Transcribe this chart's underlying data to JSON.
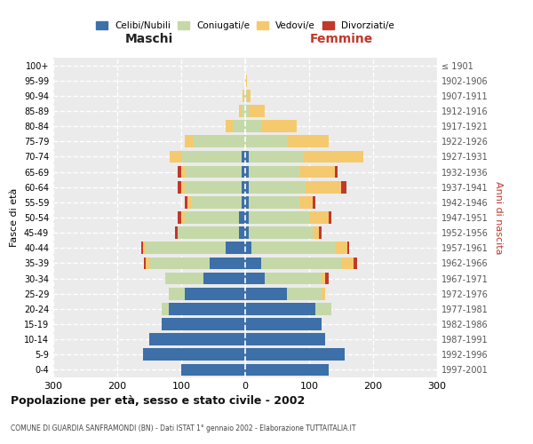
{
  "age_groups": [
    "0-4",
    "5-9",
    "10-14",
    "15-19",
    "20-24",
    "25-29",
    "30-34",
    "35-39",
    "40-44",
    "45-49",
    "50-54",
    "55-59",
    "60-64",
    "65-69",
    "70-74",
    "75-79",
    "80-84",
    "85-89",
    "90-94",
    "95-99",
    "100+"
  ],
  "anni_nascita": [
    "1997-2001",
    "1992-1996",
    "1987-1991",
    "1982-1986",
    "1977-1981",
    "1972-1976",
    "1967-1971",
    "1962-1966",
    "1957-1961",
    "1952-1956",
    "1947-1951",
    "1942-1946",
    "1937-1941",
    "1932-1936",
    "1927-1931",
    "1922-1926",
    "1917-1921",
    "1912-1916",
    "1907-1911",
    "1902-1906",
    "≤ 1901"
  ],
  "maschi_celibi": [
    100,
    160,
    150,
    130,
    120,
    95,
    65,
    55,
    30,
    10,
    10,
    5,
    5,
    5,
    5,
    0,
    0,
    0,
    0,
    0,
    0
  ],
  "maschi_coniugati": [
    0,
    0,
    0,
    0,
    10,
    25,
    60,
    95,
    125,
    95,
    85,
    80,
    90,
    90,
    95,
    80,
    20,
    5,
    2,
    0,
    0
  ],
  "maschi_vedovi": [
    0,
    0,
    0,
    0,
    0,
    0,
    0,
    5,
    5,
    0,
    5,
    5,
    5,
    5,
    18,
    15,
    10,
    5,
    2,
    0,
    0
  ],
  "maschi_divorziati": [
    0,
    0,
    0,
    0,
    0,
    0,
    0,
    3,
    3,
    5,
    5,
    5,
    5,
    5,
    0,
    0,
    0,
    0,
    0,
    0,
    0
  ],
  "femmine_nubili": [
    130,
    155,
    125,
    120,
    110,
    65,
    30,
    25,
    10,
    5,
    5,
    5,
    5,
    5,
    5,
    0,
    0,
    0,
    0,
    0,
    0
  ],
  "femmine_coniugate": [
    0,
    0,
    0,
    0,
    25,
    55,
    90,
    125,
    130,
    100,
    95,
    80,
    90,
    80,
    85,
    65,
    25,
    5,
    3,
    0,
    0
  ],
  "femmine_vedove": [
    0,
    0,
    0,
    0,
    0,
    5,
    5,
    20,
    20,
    10,
    30,
    20,
    55,
    55,
    95,
    65,
    55,
    25,
    5,
    3,
    0
  ],
  "femmine_divorziate": [
    0,
    0,
    0,
    0,
    0,
    0,
    5,
    5,
    3,
    5,
    5,
    5,
    8,
    5,
    0,
    0,
    0,
    0,
    0,
    0,
    0
  ],
  "colors": {
    "celibi_nubili": "#3d6fa8",
    "coniugati": "#c5d9a8",
    "vedovi": "#f5c96e",
    "divorziati": "#c0392b"
  },
  "title": "Popolazione per età, sesso e stato civile - 2002",
  "subtitle": "COMUNE DI GUARDIA SANFRAMONDI (BN) - Dati ISTAT 1° gennaio 2002 - Elaborazione TUTTAITALIA.IT",
  "label_maschi": "Maschi",
  "label_femmine": "Femmine",
  "ylabel_left": "Fasce di età",
  "ylabel_right": "Anni di nascita",
  "xlim": 300,
  "bg_color": "#ebebeb",
  "legend_labels": [
    "Celibi/Nubili",
    "Coniugati/e",
    "Vedovi/e",
    "Divorziati/e"
  ]
}
